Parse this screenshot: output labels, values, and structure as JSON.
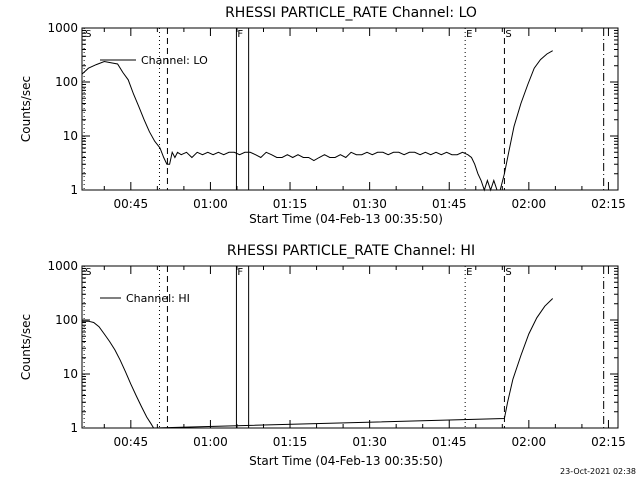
{
  "chart_data": [
    {
      "type": "line",
      "title": "RHESSI PARTICLE_RATE Channel: LO",
      "xlabel": "Start Time (04-Feb-13 00:35:50)",
      "ylabel": "Counts/sec",
      "legend": "Channel: LO",
      "legend_position": "top-left",
      "yscale": "log",
      "ylim": [
        1,
        1000
      ],
      "yticks": [
        "1",
        "10",
        "100",
        "1000"
      ],
      "xlim_minutes": [
        35.8,
        136.8
      ],
      "xticks": [
        {
          "label": "00:45",
          "minutes": 45
        },
        {
          "label": "01:00",
          "minutes": 60
        },
        {
          "label": "01:15",
          "minutes": 75
        },
        {
          "label": "01:30",
          "minutes": 90
        },
        {
          "label": "01:45",
          "minutes": 105
        },
        {
          "label": "02:00",
          "minutes": 120
        },
        {
          "label": "02:15",
          "minutes": 135
        }
      ],
      "markers": [
        {
          "label": "S",
          "minutes": 36.2,
          "style": "dotted"
        },
        {
          "label": "",
          "minutes": 50.4,
          "style": "dotted"
        },
        {
          "label": "",
          "minutes": 51.9,
          "style": "dashed"
        },
        {
          "label": "F",
          "minutes": 64.9,
          "style": "solid"
        },
        {
          "label": "",
          "minutes": 67.2,
          "style": "solid"
        },
        {
          "label": "E",
          "minutes": 108.0,
          "style": "dotted"
        },
        {
          "label": "S",
          "minutes": 115.4,
          "style": "dashed"
        },
        {
          "label": "",
          "minutes": 134.1,
          "style": "dashdot"
        }
      ],
      "series": [
        {
          "name": "LO",
          "x": [
            35.8,
            37,
            38.5,
            40,
            41.5,
            42.5,
            43.5,
            44.5,
            45.5,
            46.5,
            47.5,
            48.5,
            49.5,
            50.5,
            51.2,
            51.8,
            52.3,
            52.8,
            53.3,
            53.8,
            54.5,
            55.5,
            56.5,
            57.5,
            58.5,
            59.5,
            60.5,
            61.5,
            62.5,
            63.5,
            64.5,
            65.5,
            66.5,
            67.5,
            68.5,
            69.5,
            70.5,
            71.5,
            72.5,
            73.5,
            74.5,
            75.5,
            76.5,
            77.5,
            78.5,
            79.5,
            80.5,
            81.5,
            82.5,
            83.5,
            84.5,
            85.5,
            86.5,
            87.5,
            88.5,
            89.5,
            90.5,
            91.5,
            92.5,
            93.5,
            94.5,
            95.5,
            96.5,
            97.5,
            98.5,
            99.5,
            100.5,
            101.5,
            102.5,
            103.5,
            104.5,
            105.5,
            106.5,
            107.5,
            108.5,
            109.2,
            109.8,
            110.4,
            111,
            111.6,
            112.2,
            112.8,
            113.4,
            114,
            114.6,
            115.4,
            116.2,
            117.2,
            118.5,
            119.8,
            121,
            122.2,
            123.4,
            124.5
          ],
          "values": [
            140,
            180,
            210,
            240,
            225,
            215,
            150,
            110,
            60,
            35,
            20,
            12,
            8,
            6,
            4,
            3,
            3,
            5,
            4,
            5,
            4.5,
            5,
            4,
            5,
            4.5,
            5,
            4.5,
            5,
            4.5,
            5,
            5,
            4.5,
            5,
            5,
            4.5,
            4,
            5,
            4.5,
            4,
            4,
            4.5,
            4,
            4.5,
            4,
            4,
            3.5,
            4,
            4.5,
            4,
            4,
            4.5,
            4,
            5,
            4.5,
            4.5,
            5,
            4.5,
            5,
            5,
            4.5,
            5,
            5,
            4.5,
            5,
            5,
            4.5,
            5,
            4.5,
            5,
            4.5,
            5,
            4.5,
            4.5,
            5,
            4.5,
            4,
            3,
            2,
            1.5,
            1,
            1.5,
            1,
            1.5,
            1,
            1,
            2,
            5,
            15,
            40,
            90,
            180,
            260,
            330,
            380
          ]
        }
      ]
    },
    {
      "type": "line",
      "title": "RHESSI PARTICLE_RATE Channel: HI",
      "xlabel": "Start Time (04-Feb-13 00:35:50)",
      "ylabel": "Counts/sec",
      "legend": "Channel: HI",
      "legend_position": "top-left",
      "yscale": "log",
      "ylim": [
        1,
        1000
      ],
      "yticks": [
        "1",
        "10",
        "100",
        "1000"
      ],
      "xlim_minutes": [
        35.8,
        136.8
      ],
      "xticks": [
        {
          "label": "00:45",
          "minutes": 45
        },
        {
          "label": "01:00",
          "minutes": 60
        },
        {
          "label": "01:15",
          "minutes": 75
        },
        {
          "label": "01:30",
          "minutes": 90
        },
        {
          "label": "01:45",
          "minutes": 105
        },
        {
          "label": "02:00",
          "minutes": 120
        },
        {
          "label": "02:15",
          "minutes": 135
        }
      ],
      "markers": [
        {
          "label": "S",
          "minutes": 36.2,
          "style": "dotted"
        },
        {
          "label": "",
          "minutes": 50.4,
          "style": "dotted"
        },
        {
          "label": "",
          "minutes": 51.9,
          "style": "dashed"
        },
        {
          "label": "F",
          "minutes": 64.9,
          "style": "solid"
        },
        {
          "label": "",
          "minutes": 67.2,
          "style": "solid"
        },
        {
          "label": "E",
          "minutes": 108.0,
          "style": "dotted"
        },
        {
          "label": "S",
          "minutes": 115.4,
          "style": "dashed"
        },
        {
          "label": "",
          "minutes": 134.1,
          "style": "dashdot"
        }
      ],
      "series": [
        {
          "name": "HI",
          "x": [
            35.8,
            37,
            38,
            39,
            40,
            41,
            42,
            43,
            44,
            45,
            46,
            47,
            48,
            48.8,
            49.3,
            115.4,
            116,
            117,
            118.5,
            120,
            121.5,
            123,
            124.5
          ],
          "values": [
            95,
            95,
            90,
            75,
            55,
            40,
            28,
            18,
            11,
            6.5,
            4,
            2.5,
            1.6,
            1.2,
            1,
            1.5,
            3,
            8,
            22,
            55,
            110,
            180,
            250
          ]
        }
      ]
    }
  ],
  "footer": {
    "date_stamp": "23-Oct-2021 02:38"
  }
}
